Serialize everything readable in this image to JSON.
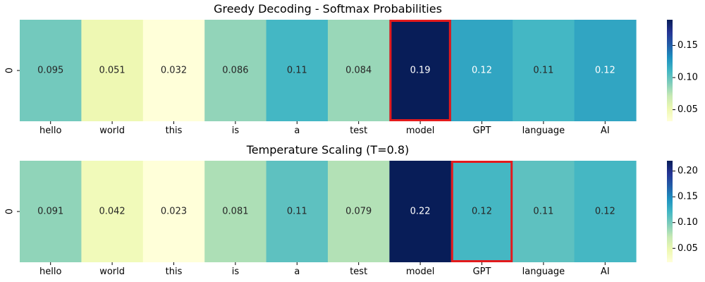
{
  "chart_data": [
    {
      "type": "heatmap",
      "title": "Greedy Decoding - Softmax Probabilities",
      "row_labels": [
        "0"
      ],
      "categories": [
        "hello",
        "world",
        "this",
        "is",
        "a",
        "test",
        "model",
        "GPT",
        "language",
        "AI"
      ],
      "values": [
        0.095,
        0.051,
        0.032,
        0.086,
        0.11,
        0.084,
        0.19,
        0.12,
        0.11,
        0.12
      ],
      "value_labels": [
        "0.095",
        "0.051",
        "0.032",
        "0.086",
        "0.11",
        "0.084",
        "0.19",
        "0.12",
        "0.11",
        "0.12"
      ],
      "colormap": "YlGnBu",
      "highlight_index": 6,
      "highlight_color": "#e31a1c",
      "colorbar": {
        "ticks": [
          0.05,
          0.1,
          0.15
        ],
        "tick_labels": [
          "0.05",
          "0.10",
          "0.15"
        ],
        "range": [
          0.032,
          0.19
        ]
      }
    },
    {
      "type": "heatmap",
      "title": "Temperature Scaling (T=0.8)",
      "row_labels": [
        "0"
      ],
      "categories": [
        "hello",
        "world",
        "this",
        "is",
        "a",
        "test",
        "model",
        "GPT",
        "language",
        "AI"
      ],
      "values": [
        0.091,
        0.042,
        0.023,
        0.081,
        0.11,
        0.079,
        0.22,
        0.12,
        0.11,
        0.12
      ],
      "value_labels": [
        "0.091",
        "0.042",
        "0.023",
        "0.081",
        "0.11",
        "0.079",
        "0.22",
        "0.12",
        "0.11",
        "0.12"
      ],
      "colormap": "YlGnBu",
      "highlight_index": 7,
      "highlight_color": "#e31a1c",
      "colorbar": {
        "ticks": [
          0.05,
          0.1,
          0.15,
          0.2
        ],
        "tick_labels": [
          "0.05",
          "0.10",
          "0.15",
          "0.20"
        ],
        "range": [
          0.023,
          0.22
        ]
      }
    }
  ]
}
